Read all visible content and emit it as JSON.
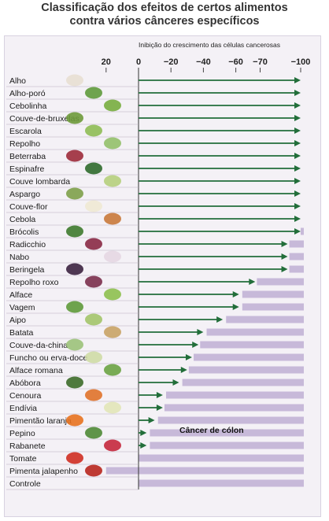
{
  "title_line1": "Classificação dos efeitos de certos alimentos",
  "title_line2": "contra vários cânceres específicos",
  "chart_data": {
    "type": "bar",
    "title": "Classificação dos efeitos de certos alimentos contra vários cânceres específicos",
    "xlabel": "Inibição do crescimento das células cancerosas",
    "xlim": [
      30,
      -100
    ],
    "tick_labels": [
      "20",
      "0",
      "−20",
      "−40",
      "−60",
      "−70",
      "−100"
    ],
    "annotation": "Câncer de cólon",
    "bar_color": "#c7b9d9",
    "arrow_color": "#226e3a",
    "categories": [
      "Alho",
      "Alho-poró",
      "Cebolinha",
      "Couve-de-bruxelas",
      "Escarola",
      "Repolho",
      "Beterraba",
      "Espinafre",
      "Couve lombarda",
      "Aspargo",
      "Couve-flor",
      "Cebola",
      "Brócolis",
      "Radicchio",
      "Nabo",
      "Beringela",
      "Repolho roxo",
      "Alface",
      "Vagem",
      "Aipo",
      "Batata",
      "Couve-da-china",
      "Funcho ou erva-doce",
      "Alface romana",
      "Abóbora",
      "Cenoura",
      "Endívia",
      "Pimentão laranja",
      "Pepino",
      "Rabanete",
      "Tomate",
      "Pimenta jalapenho",
      "Controle"
    ],
    "values": [
      -100,
      -100,
      -100,
      -100,
      -100,
      -100,
      -100,
      -100,
      -100,
      -100,
      -100,
      -100,
      -100,
      -92,
      -92,
      -92,
      -72,
      -62,
      -62,
      -52,
      -40,
      -37,
      -33,
      -30,
      -25,
      -15,
      -15,
      -10,
      -5,
      -5,
      0,
      0,
      0
    ],
    "band_values": [
      null,
      null,
      null,
      null,
      null,
      null,
      null,
      null,
      null,
      null,
      null,
      null,
      -100,
      -100,
      -100,
      -100,
      -100,
      -100,
      -100,
      -100,
      -100,
      -100,
      -100,
      -100,
      -100,
      -100,
      -100,
      -100,
      -100,
      -100,
      -100,
      -100,
      -100
    ],
    "band_starts": [
      null,
      null,
      null,
      null,
      null,
      null,
      null,
      null,
      null,
      null,
      null,
      null,
      -100,
      -93,
      -93,
      -93,
      -73,
      -64,
      -64,
      -54,
      -42,
      -38,
      -34,
      -31,
      -27,
      -17,
      -16,
      -12,
      -7,
      -7,
      0,
      20,
      0
    ],
    "food_images": [
      "garlic",
      "leek",
      "scallion",
      "brussels-sprouts",
      "escarole",
      "cabbage",
      "beet",
      "spinach",
      "savoy-cabbage",
      "asparagus",
      "cauliflower",
      "onion",
      "broccoli",
      "radicchio",
      "turnip",
      "eggplant",
      "red-cabbage",
      "lettuce",
      "green-bean",
      "celery",
      "potato",
      "bok-choy",
      "fennel",
      "romaine",
      "zucchini",
      "carrot",
      "endive",
      "orange-pepper",
      "cucumber",
      "radish",
      "tomato",
      "jalapeno"
    ]
  }
}
